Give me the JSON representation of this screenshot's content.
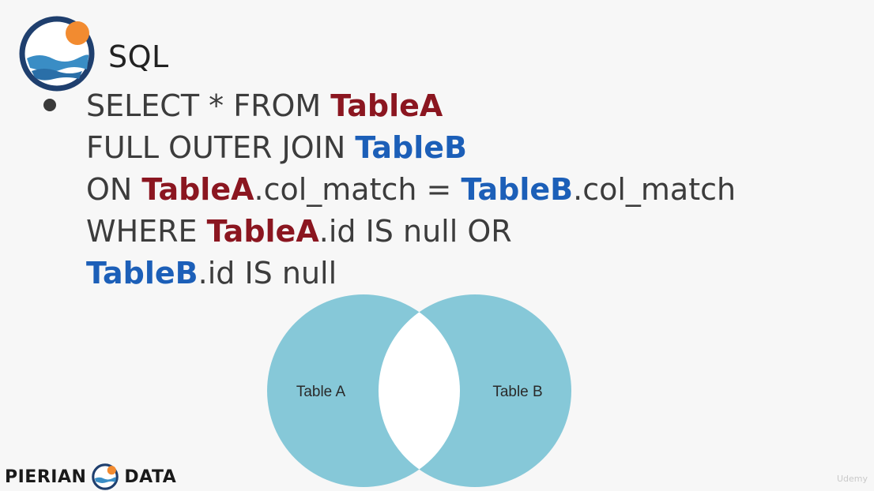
{
  "title": "SQL",
  "query": {
    "line1": {
      "kw": "SELECT * FROM ",
      "tableA": "TableA"
    },
    "line2": {
      "kw": "FULL OUTER JOIN ",
      "tableB": "TableB"
    },
    "line3": {
      "kw": "ON ",
      "tableA": "TableA",
      "mid": ".col_match = ",
      "tableB": "TableB",
      "end": ".col_match"
    },
    "line4": {
      "kw": "WHERE ",
      "tableA": "TableA",
      "end": ".id IS null OR"
    },
    "line5": {
      "tableB": "TableB",
      "end": ".id IS null"
    }
  },
  "venn": {
    "left_label": "Table A",
    "right_label": "Table B",
    "fill_color": "#86c8d8",
    "hollow_color": "#ffffff",
    "highlighted": [
      "left-only",
      "right-only"
    ]
  },
  "footer": {
    "brand_left": "PIERIAN",
    "brand_right": "DATA",
    "watermark": "Udemy"
  },
  "colors": {
    "tableA": "#8b1620",
    "tableB": "#1c5fb8",
    "logo_ring": "#1f3f6e",
    "logo_sun": "#f28b30",
    "logo_water": "#3a8dc5"
  }
}
